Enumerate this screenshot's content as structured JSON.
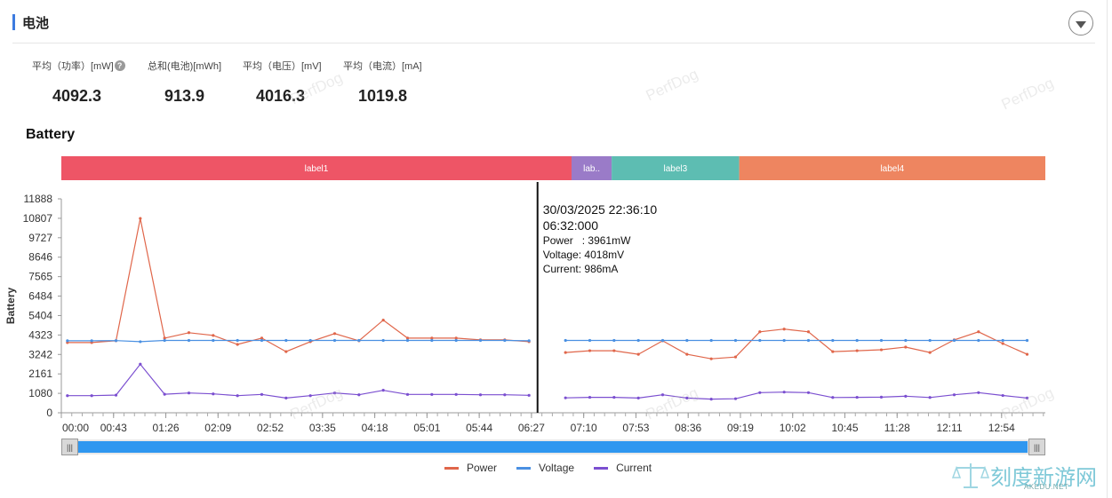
{
  "section": {
    "title": "电池"
  },
  "stats": [
    {
      "label": "平均（功率）[mW]",
      "value": "4092.3",
      "has_help": true
    },
    {
      "label": "总和(电池)[mWh]",
      "value": "913.9",
      "has_help": false
    },
    {
      "label": "平均（电压）[mV]",
      "value": "4016.3",
      "has_help": false
    },
    {
      "label": "平均（电流）[mA]",
      "value": "1019.8",
      "has_help": false
    }
  ],
  "watermark": "PerfDog",
  "brand": {
    "cn": "刻度新游网",
    "en": "AKEDU.NET"
  },
  "slider": {
    "start_handle": "|||",
    "end_handle": "|||"
  },
  "colors": {
    "power": "#e0664a",
    "voltage": "#4a90e2",
    "current": "#7b4fd0",
    "slider": "#2f97f0"
  },
  "chart_data": {
    "type": "line",
    "title": "Battery",
    "ylabel": "Battery",
    "y_ticks": [
      "0",
      "1080",
      "2161",
      "3242",
      "4323",
      "5404",
      "6484",
      "7565",
      "8646",
      "9727",
      "10807",
      "11888"
    ],
    "ylim": [
      0,
      11888
    ],
    "x_ticks": [
      "00:00",
      "00:43",
      "01:26",
      "02:09",
      "02:52",
      "03:35",
      "04:18",
      "05:01",
      "05:44",
      "06:27",
      "07:10",
      "07:53",
      "08:36",
      "09:19",
      "10:02",
      "10:45",
      "11:28",
      "12:11",
      "12:54"
    ],
    "xlim": [
      "00:00",
      "13:30"
    ],
    "labels": [
      {
        "text": "label1",
        "start": "00:00",
        "end": "07:00",
        "color": "#ee5566"
      },
      {
        "text": "lab..",
        "start": "07:00",
        "end": "07:33",
        "color": "#9a7bc8"
      },
      {
        "text": "label3",
        "start": "07:33",
        "end": "09:18",
        "color": "#5dbdb2"
      },
      {
        "text": "label4",
        "start": "09:18",
        "end": "13:30",
        "color": "#ee8560"
      }
    ],
    "series": [
      {
        "name": "Power",
        "segments": [
          {
            "x": [
              "00:05",
              "00:25",
              "00:45",
              "01:05",
              "01:25",
              "01:45",
              "02:05",
              "02:25",
              "02:45",
              "03:05",
              "03:25",
              "03:45",
              "04:05",
              "04:25",
              "04:45",
              "05:05",
              "05:25",
              "05:45",
              "06:05",
              "06:25"
            ],
            "y": [
              3900,
              3900,
              4000,
              10800,
              4150,
              4450,
              4300,
              3800,
              4150,
              3400,
              3950,
              4400,
              4000,
              5150,
              4150,
              4150,
              4150,
              4050,
              4050,
              3950
            ]
          },
          {
            "x": [
              "06:55",
              "07:15",
              "07:35",
              "07:55",
              "08:15",
              "08:35",
              "08:55",
              "09:15",
              "09:35",
              "09:55",
              "10:15",
              "10:35",
              "10:55",
              "11:15",
              "11:35",
              "11:55",
              "12:15",
              "12:35",
              "12:55",
              "13:15"
            ],
            "y": [
              3350,
              3450,
              3450,
              3250,
              4000,
              3250,
              3000,
              3100,
              4500,
              4650,
              4500,
              3400,
              3450,
              3500,
              3650,
              3350,
              4050,
              4500,
              3850,
              3250
            ]
          }
        ]
      },
      {
        "name": "Voltage",
        "segments": [
          {
            "x": [
              "00:05",
              "00:25",
              "00:45",
              "01:05",
              "01:25",
              "01:45",
              "02:05",
              "02:25",
              "02:45",
              "03:05",
              "03:25",
              "03:45",
              "04:05",
              "04:25",
              "04:45",
              "05:05",
              "05:25",
              "05:45",
              "06:05",
              "06:25"
            ],
            "y": [
              4000,
              4000,
              4010,
              3950,
              4020,
              4020,
              4020,
              4020,
              4020,
              4020,
              4020,
              4020,
              4020,
              4020,
              4020,
              4020,
              4020,
              4020,
              4020,
              4000
            ]
          },
          {
            "x": [
              "06:55",
              "07:15",
              "07:35",
              "07:55",
              "08:15",
              "08:35",
              "08:55",
              "09:15",
              "09:35",
              "09:55",
              "10:15",
              "10:35",
              "10:55",
              "11:15",
              "11:35",
              "11:55",
              "12:15",
              "12:35",
              "12:55",
              "13:15"
            ],
            "y": [
              4020,
              4020,
              4020,
              4020,
              4020,
              4020,
              4020,
              4020,
              4020,
              4020,
              4020,
              4020,
              4020,
              4020,
              4020,
              4020,
              4020,
              4020,
              4020,
              4020
            ]
          }
        ]
      },
      {
        "name": "Current",
        "segments": [
          {
            "x": [
              "00:05",
              "00:25",
              "00:45",
              "01:05",
              "01:25",
              "01:45",
              "02:05",
              "02:25",
              "02:45",
              "03:05",
              "03:25",
              "03:45",
              "04:05",
              "04:25",
              "04:45",
              "05:05",
              "05:25",
              "05:45",
              "06:05",
              "06:25"
            ],
            "y": [
              950,
              950,
              980,
              2700,
              1030,
              1100,
              1050,
              950,
              1020,
              820,
              950,
              1100,
              1000,
              1250,
              1020,
              1020,
              1020,
              1000,
              1000,
              970
            ]
          },
          {
            "x": [
              "06:55",
              "07:15",
              "07:35",
              "07:55",
              "08:15",
              "08:35",
              "08:55",
              "09:15",
              "09:35",
              "09:55",
              "10:15",
              "10:35",
              "10:55",
              "11:15",
              "11:35",
              "11:55",
              "12:15",
              "12:35",
              "12:55",
              "13:15"
            ],
            "y": [
              830,
              860,
              860,
              820,
              1000,
              820,
              760,
              780,
              1120,
              1150,
              1120,
              850,
              860,
              870,
              920,
              850,
              1000,
              1120,
              960,
              820
            ]
          }
        ]
      }
    ],
    "tooltip": {
      "x": "06:32",
      "datetime": "30/03/2025 22:36:10",
      "elapsed": "06:32:000",
      "lines": [
        "Power   : 3961mW",
        "Voltage: 4018mV",
        "Current: 986mA"
      ]
    },
    "legend_position": "bottom-center",
    "grid": false
  }
}
